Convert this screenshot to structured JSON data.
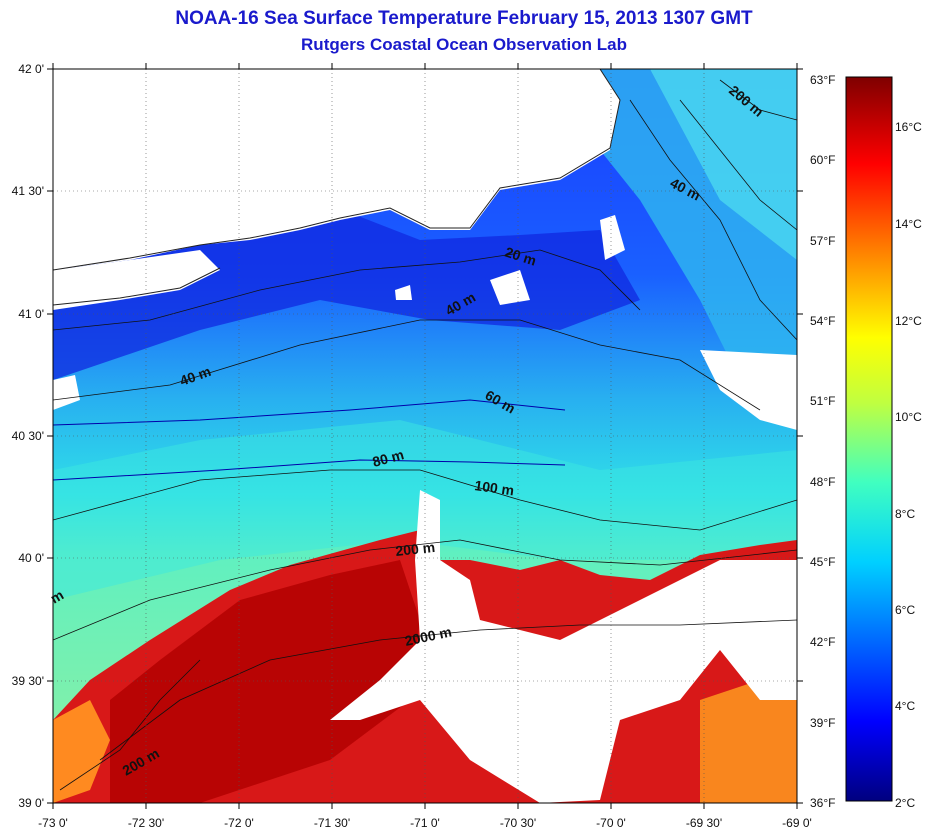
{
  "title": "NOAA-16 Sea Surface Temperature February 15, 2013 1307 GMT",
  "subtitle": "Rutgers Coastal Ocean Observation Lab",
  "lat_labels": [
    "42 0'",
    "41 30'",
    "41 0'",
    "40 30'",
    "40 0'",
    "39 30'",
    "39 0'"
  ],
  "lon_labels": [
    "-73 0'",
    "-72 30'",
    "-72 0'",
    "-71 30'",
    "-71 0'",
    "-70 30'",
    "-70 0'",
    "-69 30'",
    "-69 0'"
  ],
  "f_labels": [
    "63°F",
    "60°F",
    "57°F",
    "54°F",
    "51°F",
    "48°F",
    "45°F",
    "42°F",
    "39°F",
    "36°F"
  ],
  "c_labels": [
    "16°C",
    "14°C",
    "12°C",
    "10°C",
    "8°C",
    "6°C",
    "4°C",
    "2°C"
  ],
  "contour_labels": [
    "200 m",
    "40 m",
    "20 m",
    "40 m",
    "40 m",
    "60 m",
    "80 m",
    "100 m",
    "200 m",
    "2000 m",
    "200 m",
    "m"
  ],
  "colors": {
    "title": "#1a1acc",
    "ramp": [
      "#00007f",
      "#0000ff",
      "#0080ff",
      "#00ffff",
      "#80ff80",
      "#ffff00",
      "#ff8000",
      "#ff0000",
      "#7f0000"
    ]
  }
}
